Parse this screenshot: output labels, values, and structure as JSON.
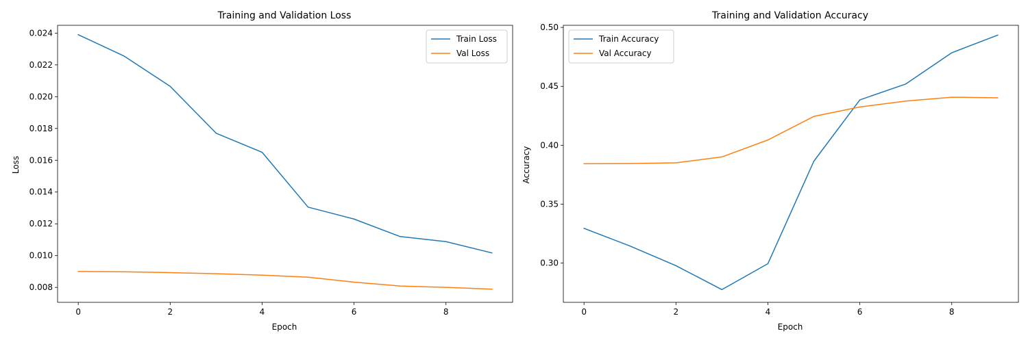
{
  "chart_data": [
    {
      "type": "line",
      "title": "Training and Validation Loss",
      "xlabel": "Epoch",
      "ylabel": "Loss",
      "xlim": [
        -0.45,
        9.45
      ],
      "ylim": [
        0.00706,
        0.02449
      ],
      "xticks": [
        0,
        2,
        4,
        6,
        8
      ],
      "xtick_labels": [
        "0",
        "2",
        "4",
        "6",
        "8"
      ],
      "yticks": [
        0.008,
        0.01,
        0.012,
        0.014,
        0.016,
        0.018,
        0.02,
        0.022,
        0.024
      ],
      "ytick_labels": [
        "0.008",
        "0.010",
        "0.012",
        "0.014",
        "0.016",
        "0.018",
        "0.020",
        "0.022",
        "0.024"
      ],
      "legend_position": "upper-right",
      "x": [
        0,
        1,
        2,
        3,
        4,
        5,
        6,
        7,
        8,
        9
      ],
      "series": [
        {
          "name": "Train Loss",
          "color": "#1f77b4",
          "values": [
            0.0239,
            0.02255,
            0.02065,
            0.0177,
            0.0165,
            0.01305,
            0.0123,
            0.0112,
            0.01088,
            0.01017
          ]
        },
        {
          "name": "Val Loss",
          "color": "#ff7f0e",
          "values": [
            0.009,
            0.00898,
            0.00893,
            0.00886,
            0.00877,
            0.00864,
            0.00833,
            0.00809,
            0.008,
            0.00789
          ]
        }
      ]
    },
    {
      "type": "line",
      "title": "Training and Validation Accuracy",
      "xlabel": "Epoch",
      "ylabel": "Accuracy",
      "xlim": [
        -0.45,
        9.45
      ],
      "ylim": [
        0.2667,
        0.5018
      ],
      "xticks": [
        0,
        2,
        4,
        6,
        8
      ],
      "xtick_labels": [
        "0",
        "2",
        "4",
        "6",
        "8"
      ],
      "yticks": [
        0.3,
        0.35,
        0.4,
        0.45,
        0.5
      ],
      "ytick_labels": [
        "0.30",
        "0.35",
        "0.40",
        "0.45",
        "0.50"
      ],
      "legend_position": "upper-left",
      "x": [
        0,
        1,
        2,
        3,
        4,
        5,
        6,
        7,
        8,
        9
      ],
      "series": [
        {
          "name": "Train Accuracy",
          "color": "#1f77b4",
          "values": [
            0.3295,
            0.3145,
            0.2978,
            0.2775,
            0.2995,
            0.3865,
            0.4385,
            0.452,
            0.4785,
            0.4935
          ]
        },
        {
          "name": "Val Accuracy",
          "color": "#ff7f0e",
          "values": [
            0.3843,
            0.3845,
            0.3851,
            0.3901,
            0.4045,
            0.4245,
            0.4325,
            0.4375,
            0.4408,
            0.4403
          ]
        }
      ]
    }
  ]
}
